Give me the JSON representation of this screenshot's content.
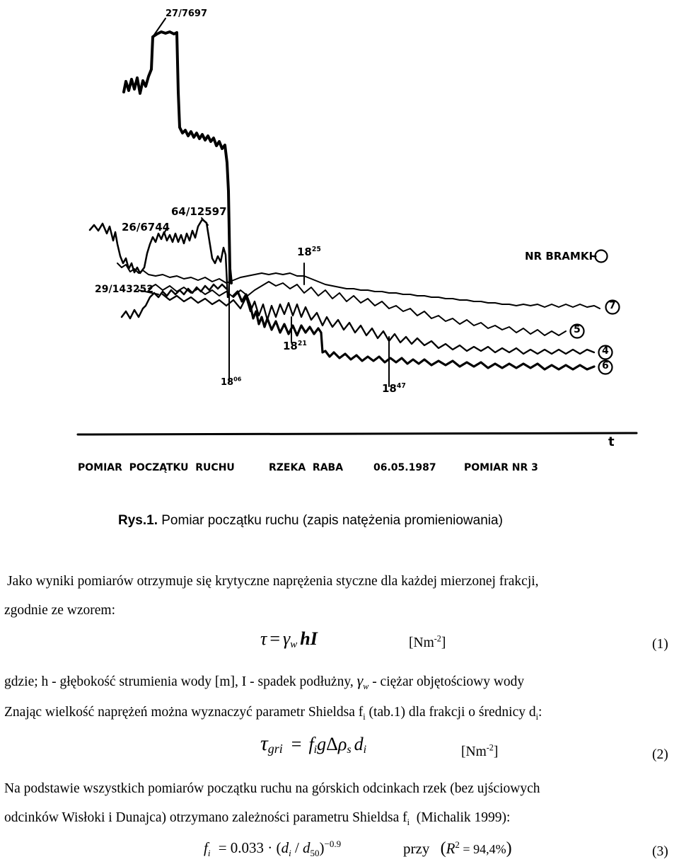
{
  "figure": {
    "marks": {
      "top": "27/7697",
      "m64": "64/12597",
      "m26": "26/6744",
      "m29": "29/143252",
      "t1825_main": "18",
      "t1825_sup": "25",
      "t1821_main": "18",
      "t1821_sup": "21",
      "t1806_main": "18",
      "t1806_sup": "06",
      "t1847_main": "18",
      "t1847_sup": "47"
    },
    "legend_title": "NR BRAMKI-",
    "curve_labels": [
      "7",
      "5",
      "4",
      "6"
    ],
    "axis_label": "t",
    "footer": {
      "left": "POMIAR  POCZĄTKU  RUCHU",
      "river": "RZEKA  RABA",
      "date": "06.05.1987",
      "right": "POMIAR NR 3"
    }
  },
  "caption": {
    "label": "Rys.1.",
    "text": " Pomiar początku ruchu (zapis natężenia promieniowania)"
  },
  "paragraph1_line1": "Jako wyniki pomiarów otrzymuje się krytyczne naprężenia styczne dla każdej mierzonej frakcji,",
  "paragraph1_line2": "zgodnie ze wzorem:",
  "eq1": {
    "tau": "τ",
    "eqsign": "=",
    "gamma": "γ",
    "sub": "w",
    "rest": "hI",
    "unit_main": "[Nm",
    "unit_sup": "-2",
    "unit_close": "]",
    "number": "(1)"
  },
  "line_gdzie_a": "gdzie; h - głębokość strumienia wody [m], I - spadek podłużny, ",
  "line_gdzie_gamma": "γ",
  "line_gdzie_w": "w",
  "line_gdzie_b": " - ciężar objętościowy wody",
  "line_znajac_a": "Znając wielkość naprężeń można wyznaczyć parametr Shieldsa f",
  "line_znajac_i": "i",
  "line_znajac_b": " (tab.1) dla frakcji o średnicy d",
  "line_znajac_i2": "i",
  "line_znajac_c": ":",
  "eq2": {
    "tau": "τ",
    "sub": "gri",
    "eqsign": "=",
    "f": "f",
    "fi": "i",
    "g": "g",
    "delta": "Δ",
    "rho": "ρ",
    "rs": "s",
    "d": "d",
    "di": "i",
    "unit_main": "[Nm",
    "unit_sup": "-2",
    "unit_close": "]",
    "number": "(2)"
  },
  "para2_line1": "Na podstawie wszystkich pomiarów początku ruchu na górskich odcinkach rzek (bez ujściowych",
  "para2_line2a": "odcinków Wisłoki i Dunajca) otrzymano zależności parametru Shieldsa f",
  "para2_line2i": "i",
  "para2_line2b": "  (Michalik 1999):",
  "eq3": {
    "f": "f",
    "fi": "i",
    "rhs": "= 0.033 · (",
    "d": "d",
    "di": "i",
    "slash": " / ",
    "d50": "d",
    "d50sub": "50",
    "close": ")",
    "exp": "−0.9",
    "przy": "przy",
    "paren": "(",
    "R": "R",
    "R2": "2",
    "Rval": " = 94,4%",
    "paren_close": ")",
    "number": "(3)"
  }
}
